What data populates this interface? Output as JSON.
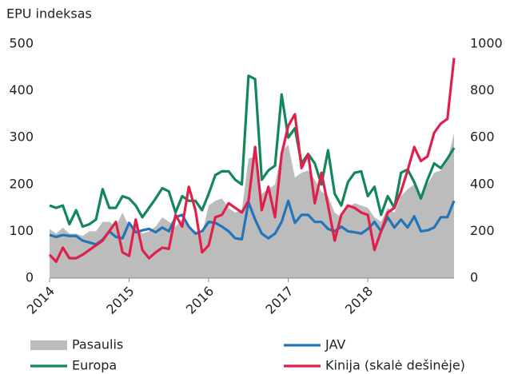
{
  "chart_data": {
    "type": "line",
    "title": "EPU indeksas",
    "categories": [
      "2014",
      null,
      null,
      null,
      null,
      null,
      null,
      null,
      null,
      null,
      null,
      null,
      "2015",
      null,
      null,
      null,
      null,
      null,
      null,
      null,
      null,
      null,
      null,
      null,
      "2016",
      null,
      null,
      null,
      null,
      null,
      null,
      null,
      null,
      null,
      null,
      null,
      "2017",
      null,
      null,
      null,
      null,
      null,
      null,
      null,
      null,
      null,
      null,
      null,
      "2018",
      null,
      null,
      null,
      null,
      null,
      null,
      null,
      null,
      null,
      null,
      null,
      null,
      null
    ],
    "series": [
      {
        "name": "Pasaulis",
        "color": "#bcbcbc",
        "style": "area",
        "values": [
          105,
          95,
          108,
          95,
          95,
          90,
          100,
          100,
          120,
          120,
          110,
          140,
          110,
          110,
          95,
          100,
          110,
          130,
          120,
          110,
          125,
          110,
          100,
          95,
          155,
          165,
          170,
          150,
          140,
          145,
          255,
          260,
          180,
          190,
          200,
          270,
          285,
          215,
          225,
          230,
          210,
          185,
          175,
          140,
          130,
          150,
          160,
          155,
          150,
          130,
          120,
          150,
          140,
          175,
          190,
          200,
          175,
          200,
          225,
          230,
          250,
          310
        ]
      },
      {
        "name": "JAV",
        "color": "#2474b8",
        "values": [
          92,
          88,
          92,
          90,
          90,
          80,
          76,
          72,
          82,
          100,
          88,
          85,
          118,
          98,
          102,
          105,
          98,
          108,
          100,
          130,
          135,
          110,
          95,
          100,
          120,
          118,
          110,
          100,
          85,
          83,
          162,
          125,
          95,
          85,
          95,
          120,
          165,
          118,
          135,
          135,
          120,
          120,
          105,
          100,
          110,
          100,
          98,
          95,
          105,
          120,
          100,
          130,
          108,
          125,
          108,
          132,
          100,
          102,
          108,
          130,
          130,
          165
        ]
      },
      {
        "name": "Europa",
        "color": "#13875a",
        "values": [
          155,
          150,
          155,
          115,
          145,
          110,
          115,
          125,
          190,
          150,
          150,
          175,
          170,
          155,
          130,
          150,
          170,
          192,
          185,
          140,
          175,
          165,
          165,
          145,
          180,
          220,
          228,
          228,
          210,
          200,
          432,
          425,
          210,
          230,
          240,
          392,
          300,
          320,
          245,
          265,
          245,
          200,
          273,
          180,
          155,
          205,
          225,
          228,
          175,
          195,
          135,
          175,
          150,
          225,
          232,
          205,
          170,
          210,
          245,
          235,
          255,
          278
        ]
      },
      {
        "name": "Kinija (skalė dešinėje)",
        "color": "#e0204c",
        "axis": "y2",
        "values": [
          100,
          70,
          130,
          85,
          85,
          100,
          120,
          140,
          160,
          200,
          240,
          110,
          95,
          250,
          120,
          85,
          110,
          130,
          125,
          270,
          220,
          390,
          290,
          110,
          140,
          260,
          270,
          320,
          300,
          280,
          330,
          560,
          290,
          390,
          260,
          530,
          650,
          700,
          470,
          530,
          320,
          450,
          310,
          160,
          270,
          310,
          300,
          280,
          270,
          120,
          200,
          280,
          300,
          370,
          460,
          560,
          500,
          520,
          620,
          660,
          680,
          940
        ]
      }
    ],
    "ylim": [
      0,
      500
    ],
    "yticks": [
      0,
      100,
      200,
      300,
      400,
      500
    ],
    "y2lim": [
      0,
      1000
    ],
    "y2ticks": [
      0,
      200,
      400,
      600,
      800,
      1000
    ]
  }
}
